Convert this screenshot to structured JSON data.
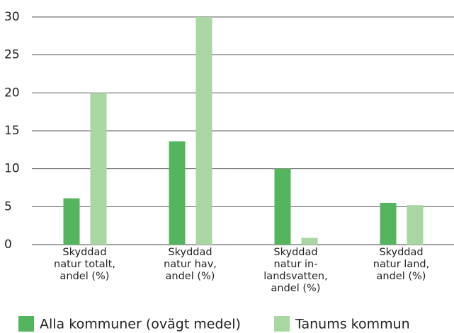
{
  "chart_data": {
    "type": "bar",
    "categories": [
      "Skyddad\nnatur totalt,\nandel (%)",
      "Skyddad\nnatur hav,\nandel (%)",
      "Skyddad\nnatur in-\nlandsvatten,\nandel (%)",
      "Skyddad\nnatur land,\nandel (%)"
    ],
    "series": [
      {
        "name": "Alla kommuner (ovägt medel)",
        "color": "#55b55e",
        "values": [
          6.1,
          13.6,
          10.0,
          5.5
        ]
      },
      {
        "name": "Tanums kommun",
        "color": "#a9d6a3",
        "values": [
          20,
          30,
          0.9,
          5.2
        ]
      }
    ],
    "ylim": [
      0,
      30
    ],
    "yticks": [
      0,
      5,
      10,
      15,
      20,
      25,
      30
    ],
    "grid": true,
    "legend": "bottom"
  }
}
